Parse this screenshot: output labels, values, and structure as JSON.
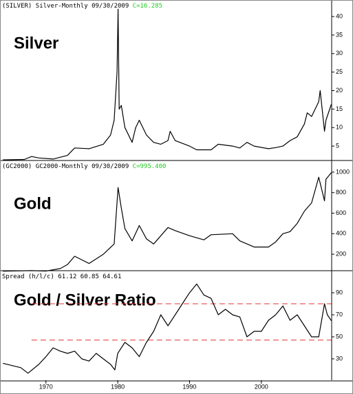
{
  "chart_data": [
    {
      "type": "line",
      "header_symbol": "(SILVER)",
      "header_name": "Silver-Monthly",
      "header_date": "09/30/2009",
      "header_close": "C=16.285",
      "close_color": "#22cc22",
      "label": "Silver",
      "color": "#000000",
      "xlim": [
        1963.6,
        2009.8
      ],
      "ylim": [
        1.3,
        44.1
      ],
      "yticks": [
        5,
        10,
        15,
        20,
        25,
        30,
        35,
        40
      ],
      "x": [
        1964,
        1967,
        1968,
        1969,
        1971,
        1973,
        1974,
        1976,
        1978,
        1979,
        1979.5,
        1979.9,
        1980.05,
        1980.2,
        1980.5,
        1981,
        1982,
        1982.5,
        1983,
        1984,
        1985,
        1986,
        1987,
        1987.3,
        1988,
        1990,
        1991,
        1993,
        1994,
        1996,
        1997,
        1998,
        1999,
        2001,
        2002,
        2003,
        2004,
        2005,
        2006,
        2006.4,
        2007,
        2008,
        2008.2,
        2008.8,
        2009,
        2009.75
      ],
      "values": [
        1.29,
        1.4,
        2.2,
        1.8,
        1.5,
        2.5,
        4.5,
        4.3,
        5.5,
        8,
        12,
        25,
        42,
        15,
        16,
        10,
        6,
        10,
        12,
        8,
        6,
        5.5,
        6.5,
        9,
        6.5,
        5,
        4,
        4,
        5.5,
        5,
        4.5,
        6,
        5,
        4.3,
        4.6,
        5,
        6.5,
        7.5,
        11,
        14,
        13,
        17,
        20,
        9,
        12,
        16.285
      ]
    },
    {
      "type": "line",
      "header_symbol": "(GC2000)",
      "header_name": "GC2000-Monthly",
      "header_date": "09/30/2009",
      "header_close": "C=995.400",
      "close_color": "#22cc22",
      "label": "Gold",
      "color": "#000000",
      "xlim": [
        1963.6,
        2009.8
      ],
      "ylim": [
        46,
        1100
      ],
      "yticks": [
        200,
        400,
        600,
        800,
        1000
      ],
      "x": [
        1964,
        1968,
        1970,
        1972,
        1973,
        1974,
        1976,
        1978,
        1979.5,
        1980.05,
        1980.5,
        1981,
        1982,
        1983,
        1984,
        1985,
        1987,
        1988,
        1990,
        1992,
        1993,
        1996,
        1997,
        1999,
        2001,
        2002,
        2003,
        2004,
        2005,
        2006,
        2007,
        2008,
        2008.8,
        2009,
        2009.75
      ],
      "values": [
        35,
        40,
        36,
        60,
        100,
        180,
        110,
        200,
        300,
        850,
        650,
        450,
        330,
        480,
        350,
        300,
        460,
        430,
        380,
        340,
        390,
        400,
        330,
        270,
        270,
        320,
        400,
        420,
        500,
        620,
        700,
        950,
        720,
        930,
        995.4
      ]
    },
    {
      "type": "line",
      "header_symbol": "Spread (h/l/c)",
      "header_name": "61.12 60.85 64.61",
      "label": "Gold / Silver Ratio",
      "color": "#000000",
      "reference_lines": [
        80,
        47
      ],
      "reference_color": "#e03030",
      "xlim": [
        1963.6,
        2009.8
      ],
      "xticks": [
        {
          "value": 1970,
          "label": "1970"
        },
        {
          "value": 1980,
          "label": "1980"
        },
        {
          "value": 1990,
          "label": "1990"
        },
        {
          "value": 2000,
          "label": "2000"
        }
      ],
      "ylim": [
        10.6,
        108.8
      ],
      "yticks": [
        30,
        50,
        70,
        90
      ],
      "x": [
        1964,
        1966.5,
        1967.5,
        1969,
        1970,
        1971,
        1972,
        1973,
        1974,
        1975,
        1976,
        1977,
        1978,
        1979,
        1979.6,
        1980,
        1981,
        1982,
        1983,
        1984,
        1985,
        1986,
        1987,
        1988,
        1989,
        1990,
        1991,
        1992,
        1993,
        1994,
        1995,
        1996,
        1997,
        1998,
        1999,
        2000,
        2001,
        2002,
        2003,
        2004,
        2005,
        2006,
        2007,
        2008,
        2008.8,
        2009.2,
        2009.75
      ],
      "values": [
        26,
        22,
        17,
        25,
        32,
        40,
        37,
        35,
        37,
        30,
        28,
        35,
        30,
        25,
        20,
        35,
        45,
        40,
        32,
        45,
        55,
        70,
        60,
        70,
        80,
        90,
        98,
        88,
        85,
        70,
        75,
        70,
        68,
        50,
        55,
        55,
        65,
        70,
        78,
        65,
        70,
        60,
        50,
        50,
        80,
        70,
        64.61
      ]
    }
  ]
}
